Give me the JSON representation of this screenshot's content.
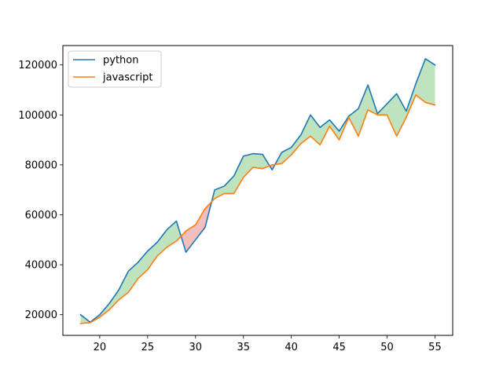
{
  "chart_data": {
    "type": "line",
    "title": "",
    "xlabel": "",
    "ylabel": "",
    "x": [
      18,
      19,
      20,
      21,
      22,
      23,
      24,
      25,
      26,
      27,
      28,
      29,
      30,
      31,
      32,
      33,
      34,
      35,
      36,
      37,
      38,
      39,
      40,
      41,
      42,
      43,
      44,
      45,
      46,
      47,
      48,
      49,
      50,
      51,
      52,
      53,
      54,
      55
    ],
    "series": [
      {
        "name": "python",
        "color": "#1f77b4",
        "values": [
          20000,
          17000,
          20000,
          24500,
          30000,
          37500,
          41000,
          45500,
          49000,
          54000,
          57500,
          45000,
          50000,
          55000,
          70000,
          71500,
          75500,
          83500,
          84500,
          84200,
          78000,
          85000,
          87000,
          92000,
          100000,
          95000,
          98000,
          93500,
          99500,
          102500,
          112000,
          100500,
          104500,
          108500,
          101500,
          112500,
          122500,
          120000
        ]
      },
      {
        "name": "javascript",
        "color": "#ff7f0e",
        "values": [
          16500,
          16800,
          19000,
          22000,
          26000,
          29000,
          34500,
          38000,
          43500,
          47000,
          49500,
          53500,
          56000,
          62500,
          66500,
          68500,
          68500,
          75000,
          79000,
          78500,
          80000,
          80500,
          84000,
          88500,
          91500,
          88000,
          95500,
          90000,
          99000,
          91500,
          102000,
          100000,
          100000,
          91500,
          99000,
          108000,
          105000,
          104000
        ]
      }
    ],
    "fill": {
      "above_color": "#2ca02c",
      "below_color": "#d62728",
      "opacity": 0.3
    },
    "xlim": [
      16.15,
      56.85
    ],
    "ylim": [
      11725,
      127775
    ],
    "xticks": [
      20,
      25,
      30,
      35,
      40,
      45,
      50,
      55
    ],
    "yticks": [
      20000,
      40000,
      60000,
      80000,
      100000,
      120000
    ],
    "legend_position": "upper left",
    "grid": false
  }
}
